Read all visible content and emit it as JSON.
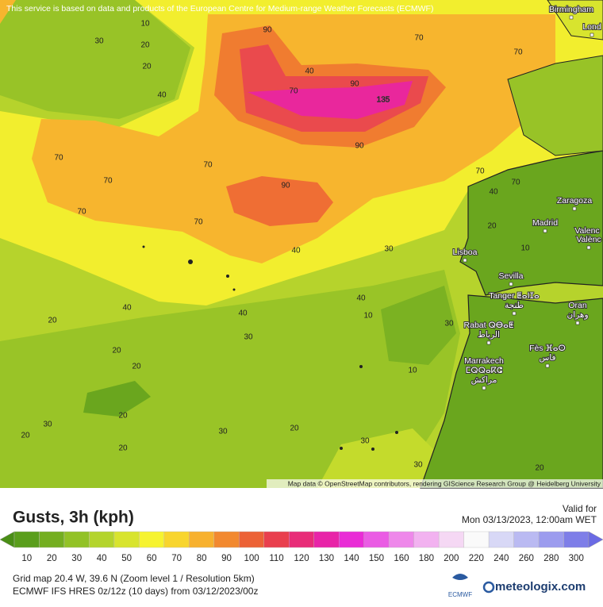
{
  "notice": "This service is based on data and products of the European Centre for Medium-range Weather Forecasts (ECMWF)",
  "attribution": "Map data © OpenStreetMap contributors, rendering GIScience Research Group @ Heidelberg University",
  "contour_labels": [
    10,
    30,
    20,
    20,
    90,
    40,
    70,
    70,
    40,
    70,
    90,
    135,
    90,
    70,
    70,
    70,
    70,
    90,
    40,
    70,
    70,
    70,
    40,
    30,
    40,
    40,
    40,
    20,
    10,
    30,
    30,
    20,
    20,
    10,
    20,
    30,
    20,
    30,
    20,
    30,
    30,
    20,
    20,
    10,
    20
  ],
  "cities": [
    {
      "lines": [
        "Birmingham"
      ]
    },
    {
      "lines": [
        "Lond"
      ]
    },
    {
      "lines": [
        "Zaragoza"
      ]
    },
    {
      "lines": [
        "Madrid"
      ]
    },
    {
      "lines": [
        "Valenc"
      ]
    },
    {
      "lines": [
        "Valènc"
      ]
    },
    {
      "lines": [
        "Lisboa"
      ]
    },
    {
      "lines": [
        "Sevilla"
      ]
    },
    {
      "lines": [
        "Tanger ⵟⴰⵏⵊⴰ",
        "طنجة"
      ]
    },
    {
      "lines": [
        "Oran",
        "وهران"
      ]
    },
    {
      "lines": [
        "Rabat ⵕⴱⴰⵟ",
        "الرباط"
      ]
    },
    {
      "lines": [
        "Fès ⴼⴰⵙ",
        "فاس"
      ]
    },
    {
      "lines": [
        "Marrakech",
        "ⵎⵕⵕⴰⴽⵛ",
        "مراكش"
      ]
    }
  ],
  "panel": {
    "title": "Gusts, 3h (kph)",
    "valid_label": "Valid for",
    "valid_time": "Mon 03/13/2023, 12:00am WET",
    "legend": {
      "labels": [
        10,
        20,
        30,
        40,
        50,
        60,
        70,
        80,
        90,
        100,
        110,
        120,
        130,
        140,
        150,
        160,
        180,
        200,
        220,
        240,
        260,
        280,
        300
      ],
      "colors": [
        "#5a9e1c",
        "#74ae20",
        "#92c226",
        "#b4d42c",
        "#d8e42e",
        "#f6f330",
        "#f8d52e",
        "#f7b12e",
        "#f2892f",
        "#ec6236",
        "#e93f4e",
        "#e82c78",
        "#e824a8",
        "#e92cd6",
        "#ea5ce4",
        "#ee88ea",
        "#f2b2f0",
        "#f5d8f4",
        "#fafafa",
        "#d8d8f6",
        "#babaf2",
        "#9c9cee",
        "#7e7ee8"
      ],
      "below_color": "#4a8e16",
      "above_color": "#6a6ae4"
    },
    "grid_info": "Grid map 20.4 W, 39.6 N (Zoom level 1 / Resolution 5km)",
    "model_info": "ECMWF IFS HRES 0z/12z (10 days) from  03/12/2023/00z",
    "ecmwf_logo": "ECMWF",
    "brand": "meteologix.com"
  }
}
